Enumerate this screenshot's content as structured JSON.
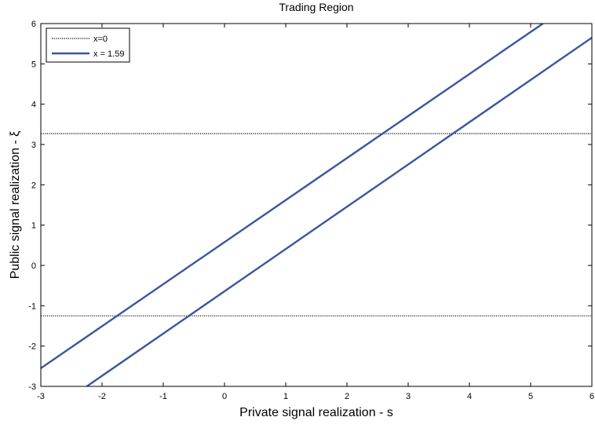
{
  "chart_data": {
    "type": "line",
    "title": "Trading Region",
    "xlabel": "Private signal realization - s",
    "ylabel": "Public signal realization - ξ",
    "xlim": [
      -3,
      6
    ],
    "ylim": [
      -3,
      6
    ],
    "xticks": [
      -3,
      -2,
      -1,
      0,
      1,
      2,
      3,
      4,
      5,
      6
    ],
    "yticks": [
      -3,
      -2,
      -1,
      0,
      1,
      2,
      3,
      4,
      5,
      6
    ],
    "grid": false,
    "legend_position": "top-left",
    "legend": [
      {
        "label": "x=0",
        "style": "dotted",
        "color": "#000000"
      },
      {
        "label": "x = 1.59",
        "style": "solid",
        "color": "#3a55a2"
      }
    ],
    "series": [
      {
        "name": "x=0",
        "style": "dotted",
        "color": "#000000",
        "x": [
          -3,
          6
        ],
        "y": [
          3.27,
          3.27
        ]
      },
      {
        "name": "x=0",
        "style": "dotted",
        "color": "#000000",
        "x": [
          -3,
          6
        ],
        "y": [
          -1.25,
          -1.25
        ]
      },
      {
        "name": "x = 1.59",
        "style": "solid",
        "color": "#3a55a2",
        "x": [
          -3,
          5.2
        ],
        "y": [
          -2.55,
          6.0
        ]
      },
      {
        "name": "x = 1.59",
        "style": "solid",
        "color": "#3a55a2",
        "x": [
          -2.25,
          6
        ],
        "y": [
          -3.0,
          5.65
        ]
      }
    ]
  }
}
